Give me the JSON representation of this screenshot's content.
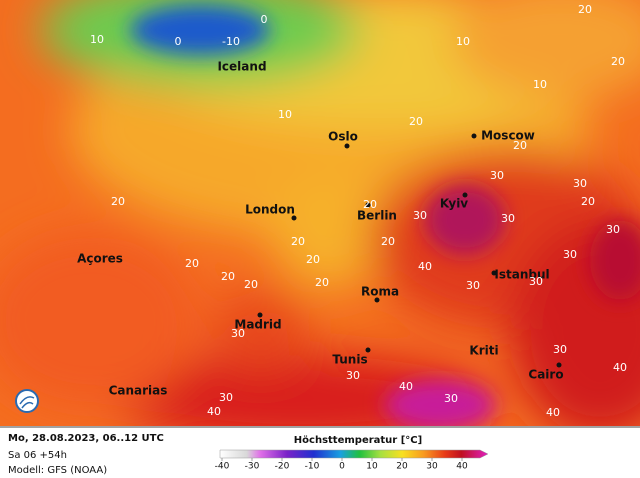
{
  "map": {
    "places": [
      "Iceland",
      "Oslo",
      "Moscow",
      "London",
      "Berlin",
      "Kyiv",
      "Açores",
      "Istanbul",
      "Roma",
      "Madrid",
      "Tunis",
      "Kriti",
      "Cairo",
      "Canarias"
    ],
    "isotherm_labels": [
      20,
      10,
      0,
      -10,
      0,
      10,
      20,
      10,
      10,
      20,
      20,
      20,
      20,
      30,
      30,
      20,
      30,
      30,
      20,
      20,
      20,
      20,
      30,
      40,
      30,
      20,
      20,
      20,
      30,
      30,
      30,
      30,
      30,
      40,
      30,
      30,
      40,
      40,
      40
    ]
  },
  "footer": {
    "date": "Mo, 28.08.2023, 06..12 UTC",
    "run": "Sa 06 +54h",
    "model": "Modell: GFS (NOAA)"
  },
  "legend": {
    "title": "Höchsttemperatur [°C]",
    "ticks": [
      -40,
      -30,
      -20,
      -10,
      0,
      10,
      20,
      30,
      40
    ]
  }
}
